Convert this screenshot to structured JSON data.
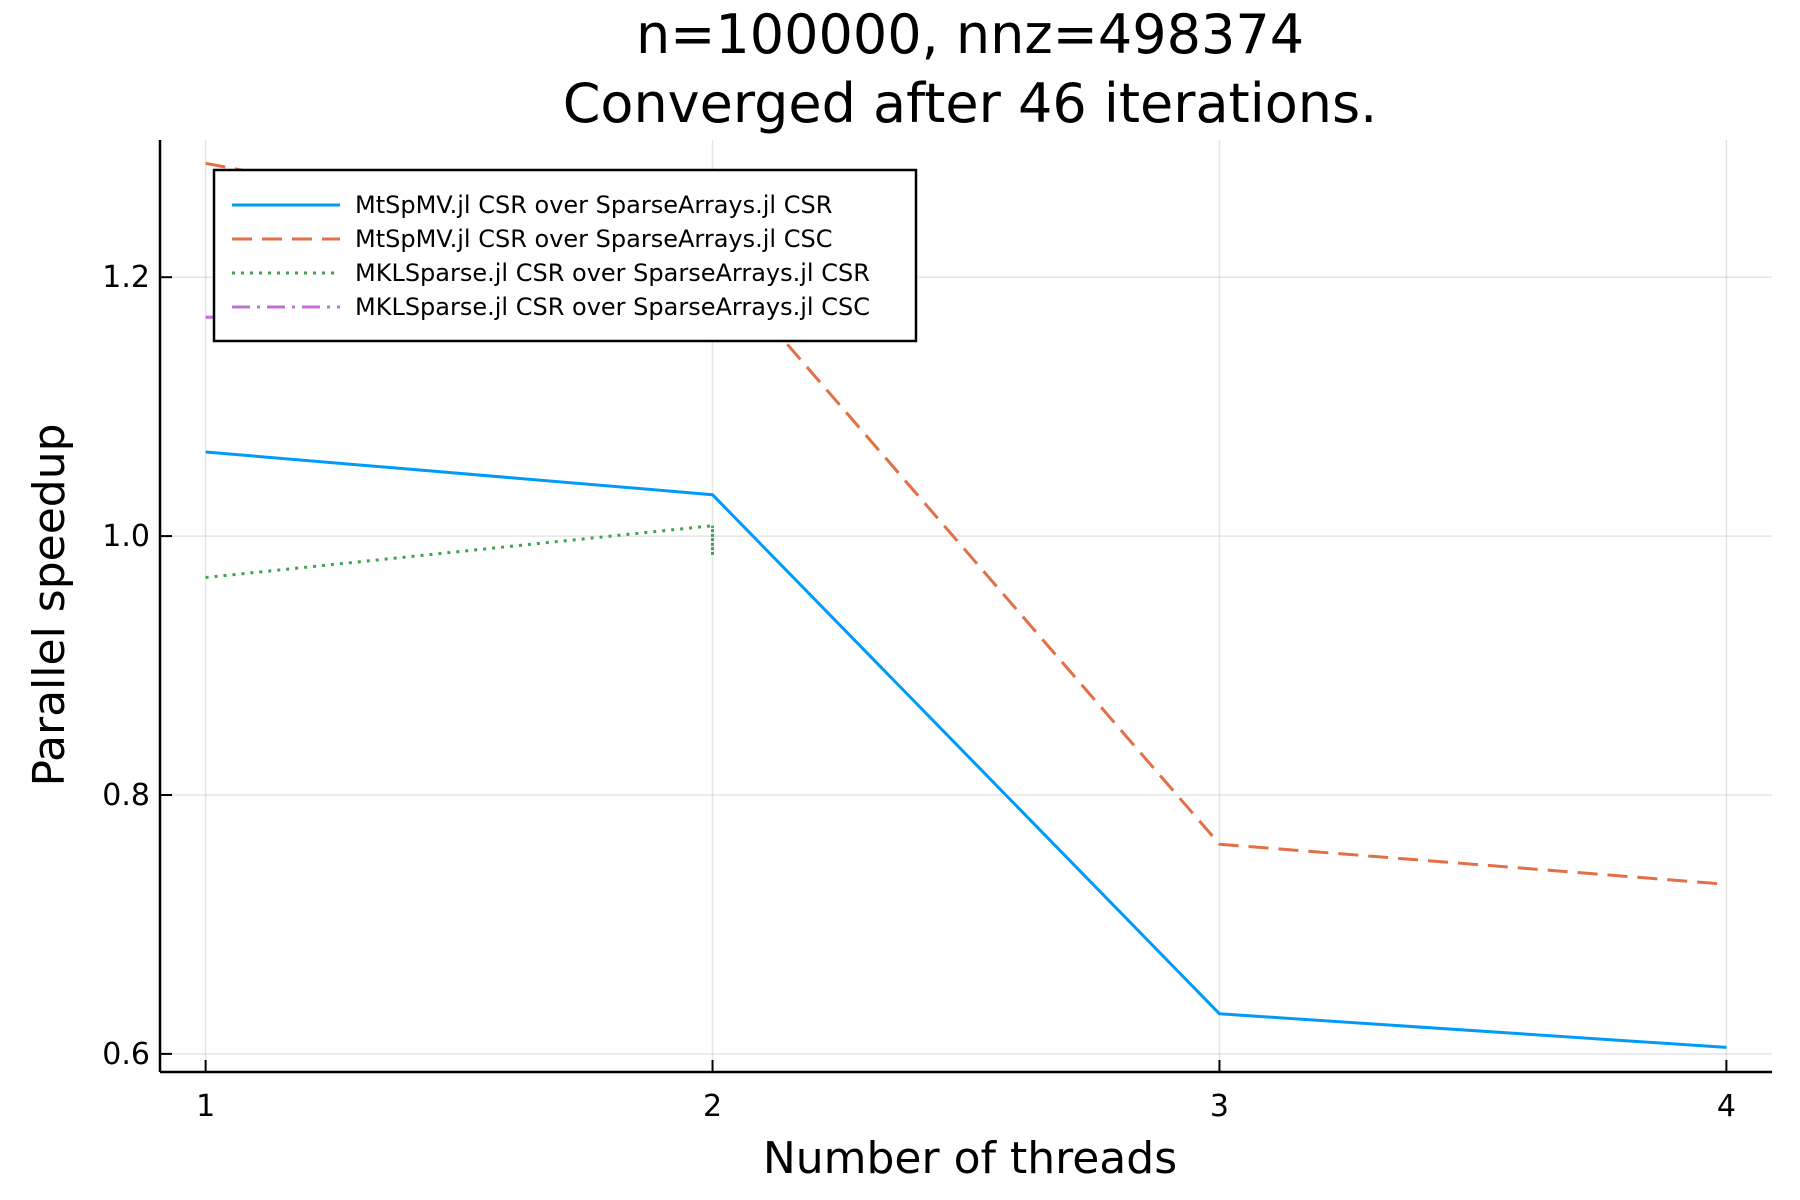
{
  "chart_data": {
    "type": "line",
    "title": "n=100000, nnz=498374",
    "subtitle": "Converged after 46 iterations.",
    "xlabel": "Number of threads",
    "ylabel": "Parallel speedup",
    "x": [
      1,
      2,
      3,
      4
    ],
    "xticks": [
      "1",
      "2",
      "3",
      "4"
    ],
    "yticks": [
      "0.6",
      "0.8",
      "1.0",
      "1.2"
    ],
    "xlim": [
      0.91,
      4.09
    ],
    "ylim": [
      0.586,
      1.306
    ],
    "grid": true,
    "legend_position": "top-left",
    "series": [
      {
        "name": "MtSpMV.jl CSR over SparseArrays.jl CSR",
        "x": [
          1,
          2,
          3,
          4
        ],
        "values": [
          1.065,
          1.032,
          0.631,
          0.605
        ],
        "color": "#009AF9",
        "style": "solid"
      },
      {
        "name": "MtSpMV.jl CSR over SparseArrays.jl CSC",
        "x": [
          1,
          2,
          3,
          4
        ],
        "values": [
          1.288,
          1.215,
          0.762,
          0.731
        ],
        "color": "#E26F46",
        "style": "dash"
      },
      {
        "name": "MKLSparse.jl CSR over SparseArrays.jl CSR",
        "x": [
          1,
          2,
          2,
          2
        ],
        "values": [
          0.968,
          1.008,
          0.985,
          1.008
        ],
        "color": "#3DA44D",
        "style": "dot"
      },
      {
        "name": "MKLSparse.jl CSR over SparseArrays.jl CSC",
        "x": [
          1,
          2
        ],
        "values": [
          1.169,
          1.176
        ],
        "color": "#C271D2",
        "style": "dashdot"
      }
    ]
  }
}
